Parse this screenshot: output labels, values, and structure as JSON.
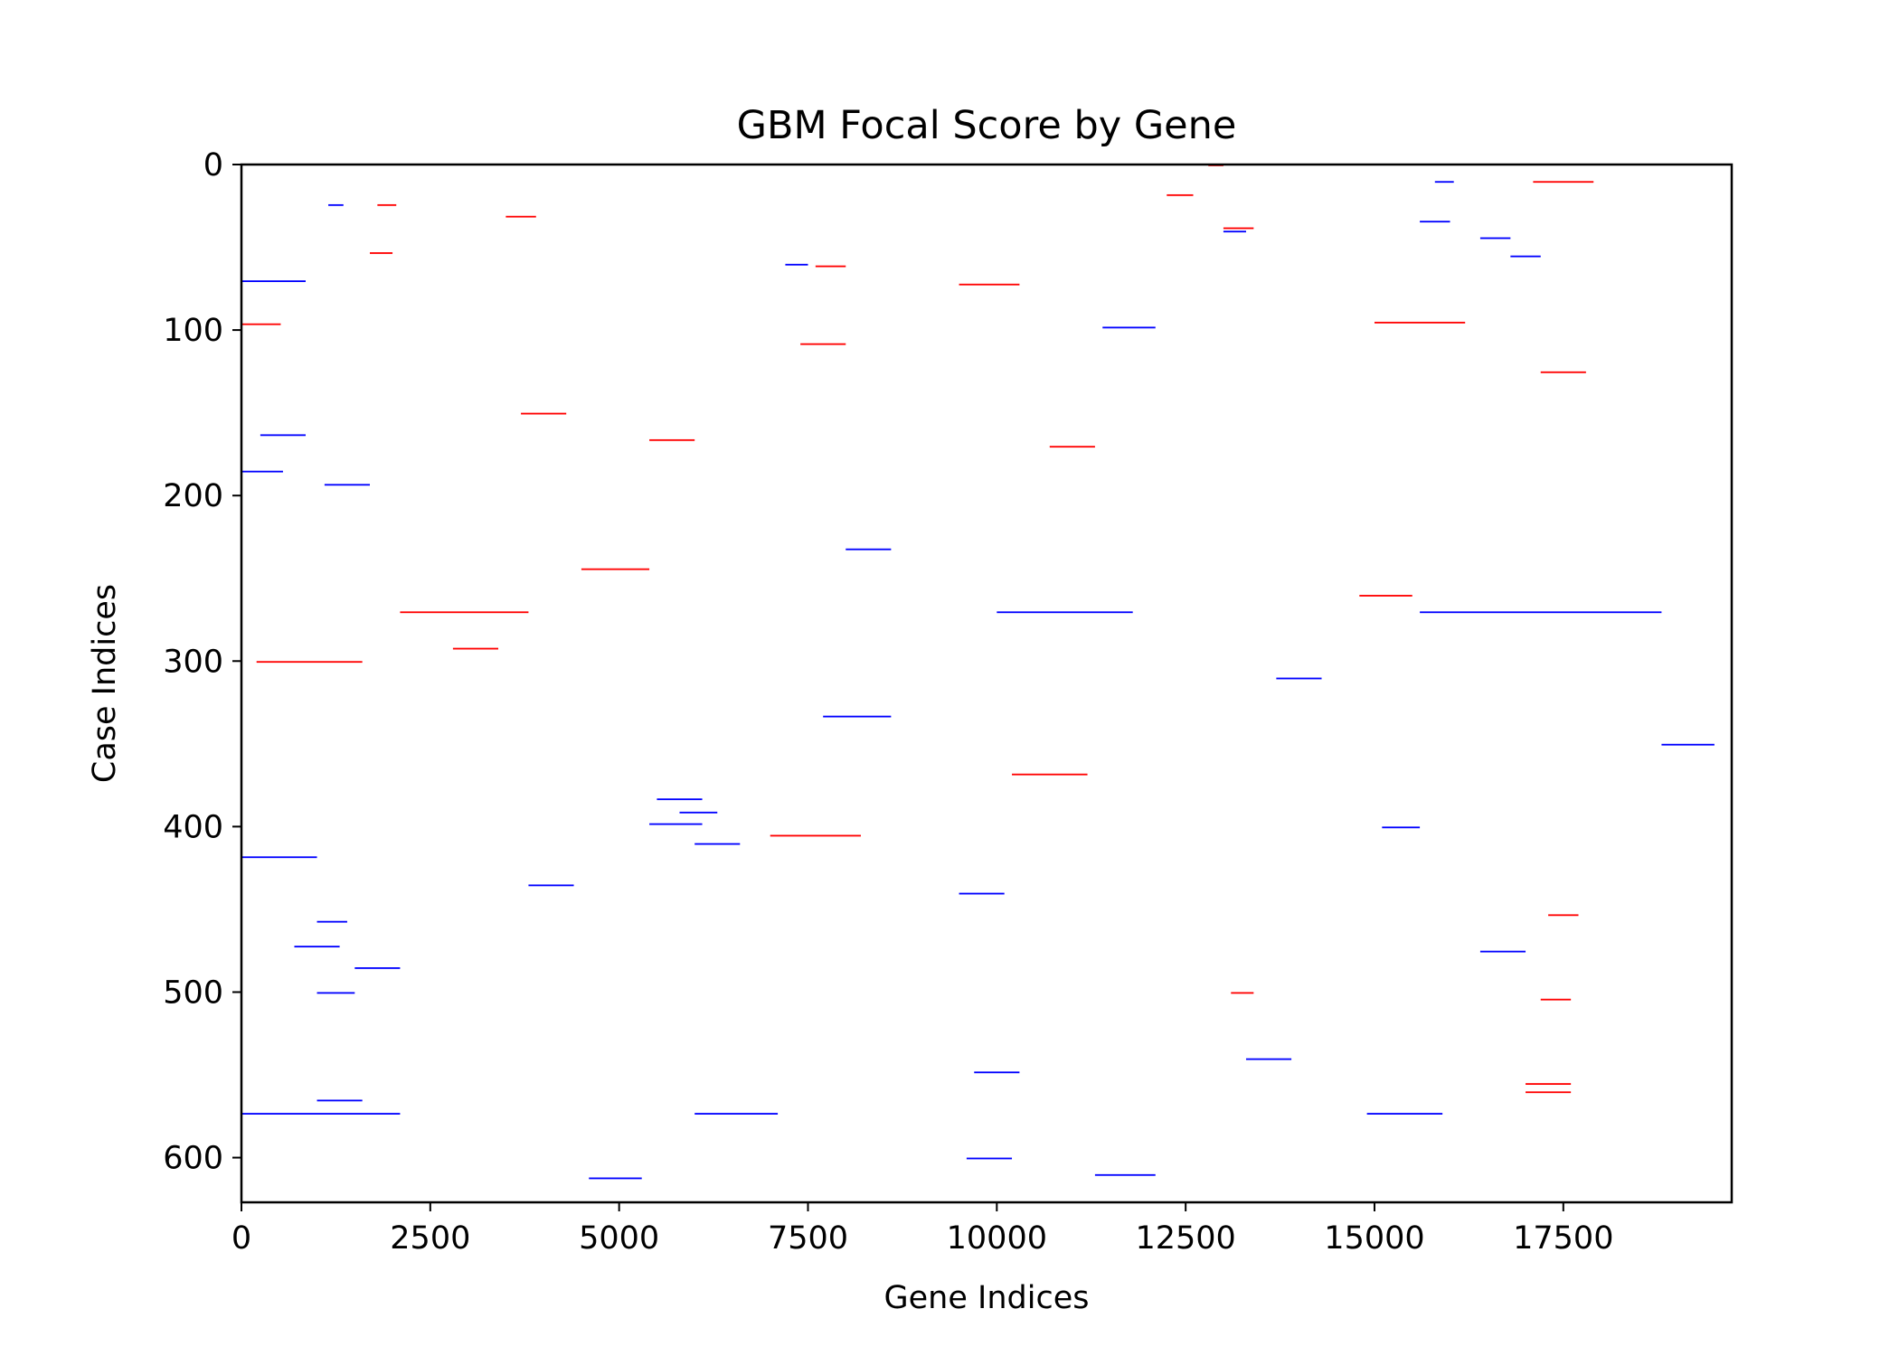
{
  "chart_data": {
    "type": "heatmap",
    "title": "GBM Focal Score by Gene",
    "xlabel": "Gene Indices",
    "ylabel": "Case Indices",
    "xlim": [
      0,
      19729
    ],
    "ylim": [
      627,
      0
    ],
    "x_ticks": [
      0,
      2500,
      5000,
      7500,
      10000,
      12500,
      15000,
      17500
    ],
    "y_ticks": [
      0,
      100,
      200,
      300,
      400,
      500,
      600
    ],
    "x_tick_labels": [
      "0",
      "2500",
      "5000",
      "7500",
      "10000",
      "12500",
      "15000",
      "17500"
    ],
    "y_tick_labels": [
      "0",
      "100",
      "200",
      "300",
      "400",
      "500",
      "600"
    ],
    "colors": {
      "amplification": "#ff0000",
      "deletion": "#0000ff",
      "neutral": "#ffffff"
    },
    "grid": false,
    "legend": "none",
    "segments": [
      {
        "row": 0,
        "x0": 12800,
        "x1": 13000,
        "value": 1
      },
      {
        "row": 10,
        "x0": 15800,
        "x1": 16050,
        "value": -1
      },
      {
        "row": 10,
        "x0": 17100,
        "x1": 17900,
        "value": 1
      },
      {
        "row": 18,
        "x0": 12250,
        "x1": 12600,
        "value": 1
      },
      {
        "row": 24,
        "x0": 1150,
        "x1": 1350,
        "value": -1
      },
      {
        "row": 24,
        "x0": 1800,
        "x1": 2050,
        "value": 1
      },
      {
        "row": 31,
        "x0": 3500,
        "x1": 3900,
        "value": 1
      },
      {
        "row": 34,
        "x0": 15600,
        "x1": 16000,
        "value": -1
      },
      {
        "row": 38,
        "x0": 13000,
        "x1": 13400,
        "value": 1
      },
      {
        "row": 40,
        "x0": 13000,
        "x1": 13300,
        "value": -1
      },
      {
        "row": 44,
        "x0": 16400,
        "x1": 16800,
        "value": -1
      },
      {
        "row": 53,
        "x0": 1700,
        "x1": 2000,
        "value": 1
      },
      {
        "row": 55,
        "x0": 16800,
        "x1": 17200,
        "value": -1
      },
      {
        "row": 60,
        "x0": 7200,
        "x1": 7500,
        "value": -1
      },
      {
        "row": 61,
        "x0": 7600,
        "x1": 8000,
        "value": 1
      },
      {
        "row": 70,
        "x0": 0,
        "x1": 850,
        "value": -1
      },
      {
        "row": 72,
        "x0": 9500,
        "x1": 10300,
        "value": 1
      },
      {
        "row": 96,
        "x0": 0,
        "x1": 520,
        "value": 1
      },
      {
        "row": 98,
        "x0": 11400,
        "x1": 12100,
        "value": -1
      },
      {
        "row": 95,
        "x0": 15000,
        "x1": 16200,
        "value": 1
      },
      {
        "row": 108,
        "x0": 7400,
        "x1": 8000,
        "value": 1
      },
      {
        "row": 125,
        "x0": 17200,
        "x1": 17800,
        "value": 1
      },
      {
        "row": 150,
        "x0": 3700,
        "x1": 4300,
        "value": 1
      },
      {
        "row": 163,
        "x0": 250,
        "x1": 850,
        "value": -1
      },
      {
        "row": 166,
        "x0": 5400,
        "x1": 6000,
        "value": 1
      },
      {
        "row": 170,
        "x0": 10700,
        "x1": 11300,
        "value": 1
      },
      {
        "row": 185,
        "x0": 0,
        "x1": 550,
        "value": -1
      },
      {
        "row": 193,
        "x0": 1100,
        "x1": 1700,
        "value": -1
      },
      {
        "row": 232,
        "x0": 8000,
        "x1": 8600,
        "value": -1
      },
      {
        "row": 244,
        "x0": 4500,
        "x1": 5400,
        "value": 1
      },
      {
        "row": 260,
        "x0": 14800,
        "x1": 15500,
        "value": 1
      },
      {
        "row": 270,
        "x0": 2100,
        "x1": 3800,
        "value": 1
      },
      {
        "row": 270,
        "x0": 10000,
        "x1": 11800,
        "value": -1
      },
      {
        "row": 270,
        "x0": 15600,
        "x1": 18800,
        "value": -1
      },
      {
        "row": 292,
        "x0": 2800,
        "x1": 3400,
        "value": 1
      },
      {
        "row": 300,
        "x0": 200,
        "x1": 1600,
        "value": 1
      },
      {
        "row": 310,
        "x0": 13700,
        "x1": 14300,
        "value": -1
      },
      {
        "row": 333,
        "x0": 7700,
        "x1": 8600,
        "value": -1
      },
      {
        "row": 350,
        "x0": 18800,
        "x1": 19500,
        "value": -1
      },
      {
        "row": 368,
        "x0": 10200,
        "x1": 11200,
        "value": 1
      },
      {
        "row": 383,
        "x0": 5500,
        "x1": 6100,
        "value": -1
      },
      {
        "row": 391,
        "x0": 5800,
        "x1": 6300,
        "value": -1
      },
      {
        "row": 398,
        "x0": 5400,
        "x1": 6100,
        "value": -1
      },
      {
        "row": 400,
        "x0": 15100,
        "x1": 15600,
        "value": -1
      },
      {
        "row": 405,
        "x0": 7000,
        "x1": 8200,
        "value": 1
      },
      {
        "row": 410,
        "x0": 6000,
        "x1": 6600,
        "value": -1
      },
      {
        "row": 418,
        "x0": 0,
        "x1": 1000,
        "value": -1
      },
      {
        "row": 435,
        "x0": 3800,
        "x1": 4400,
        "value": -1
      },
      {
        "row": 440,
        "x0": 9500,
        "x1": 10100,
        "value": -1
      },
      {
        "row": 453,
        "x0": 17300,
        "x1": 17700,
        "value": 1
      },
      {
        "row": 457,
        "x0": 1000,
        "x1": 1400,
        "value": -1
      },
      {
        "row": 472,
        "x0": 700,
        "x1": 1300,
        "value": -1
      },
      {
        "row": 475,
        "x0": 16400,
        "x1": 17000,
        "value": -1
      },
      {
        "row": 485,
        "x0": 1500,
        "x1": 2100,
        "value": -1
      },
      {
        "row": 500,
        "x0": 1000,
        "x1": 1500,
        "value": -1
      },
      {
        "row": 500,
        "x0": 13100,
        "x1": 13400,
        "value": 1
      },
      {
        "row": 504,
        "x0": 17200,
        "x1": 17600,
        "value": 1
      },
      {
        "row": 540,
        "x0": 13300,
        "x1": 13900,
        "value": -1
      },
      {
        "row": 548,
        "x0": 9700,
        "x1": 10300,
        "value": -1
      },
      {
        "row": 555,
        "x0": 17000,
        "x1": 17600,
        "value": 1
      },
      {
        "row": 560,
        "x0": 17000,
        "x1": 17600,
        "value": 1
      },
      {
        "row": 565,
        "x0": 1000,
        "x1": 1600,
        "value": -1
      },
      {
        "row": 573,
        "x0": 0,
        "x1": 2100,
        "value": -1
      },
      {
        "row": 573,
        "x0": 6000,
        "x1": 7100,
        "value": -1
      },
      {
        "row": 573,
        "x0": 14900,
        "x1": 15900,
        "value": -1
      },
      {
        "row": 600,
        "x0": 9600,
        "x1": 10200,
        "value": -1
      },
      {
        "row": 610,
        "x0": 11300,
        "x1": 12100,
        "value": -1
      },
      {
        "row": 612,
        "x0": 4600,
        "x1": 5300,
        "value": -1
      }
    ]
  }
}
